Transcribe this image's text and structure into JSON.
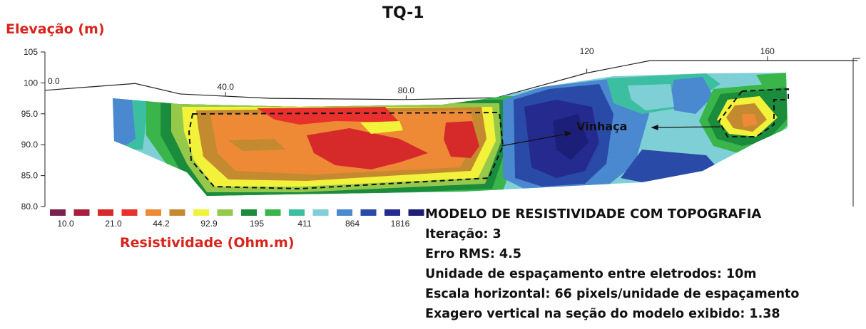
{
  "chart_data": {
    "type": "heatmap",
    "title": "TQ-1",
    "ylabel": "Elevação (m)",
    "y_ticks": [
      "105",
      "100",
      "95.0",
      "90.0",
      "85.0",
      "80.0"
    ],
    "ylim": [
      80,
      105
    ],
    "x_ticks_surface": [
      "0.0",
      "40.0",
      "80.0"
    ],
    "x_ticks_top": [
      "120",
      "160"
    ],
    "xlim": [
      0,
      180
    ],
    "annotation": "Vinhaça",
    "legend_title": "Resistividade (Ohm.m)",
    "legend_labels": [
      "10.0",
      "21.0",
      "44.2",
      "92.9",
      "195",
      "411",
      "864",
      "1816"
    ],
    "legend_colors": [
      "#7a2150",
      "#a81f3e",
      "#d62a2a",
      "#e8302c",
      "#ee8a35",
      "#c48a30",
      "#f2f23a",
      "#96c84a",
      "#1a8c3c",
      "#39b54a",
      "#3cbfa0",
      "#7fd0d6",
      "#4a88d0",
      "#2a4aa8",
      "#252a8e",
      "#1c1f78"
    ],
    "topography": [
      [
        0,
        98.8
      ],
      [
        20,
        99.9
      ],
      [
        30,
        98.2
      ],
      [
        50,
        97.5
      ],
      [
        80,
        97.3
      ],
      [
        100,
        97.6
      ],
      [
        120,
        101.6
      ],
      [
        134,
        103.6
      ],
      [
        170,
        103.6
      ],
      [
        180,
        103.6
      ]
    ],
    "model_info": {
      "heading": "MODELO DE RESISTIVIDADE COM TOPOGRAFIA",
      "lines": [
        "Iteração: 3",
        "Erro RMS: 4.5",
        "Unidade de espaçamento entre eletrodos: 10m",
        "Escala horizontal: 66 pixels/unidade de espaçamento",
        "Exagero vertical na seção do modelo exibido: 1.38"
      ]
    }
  }
}
